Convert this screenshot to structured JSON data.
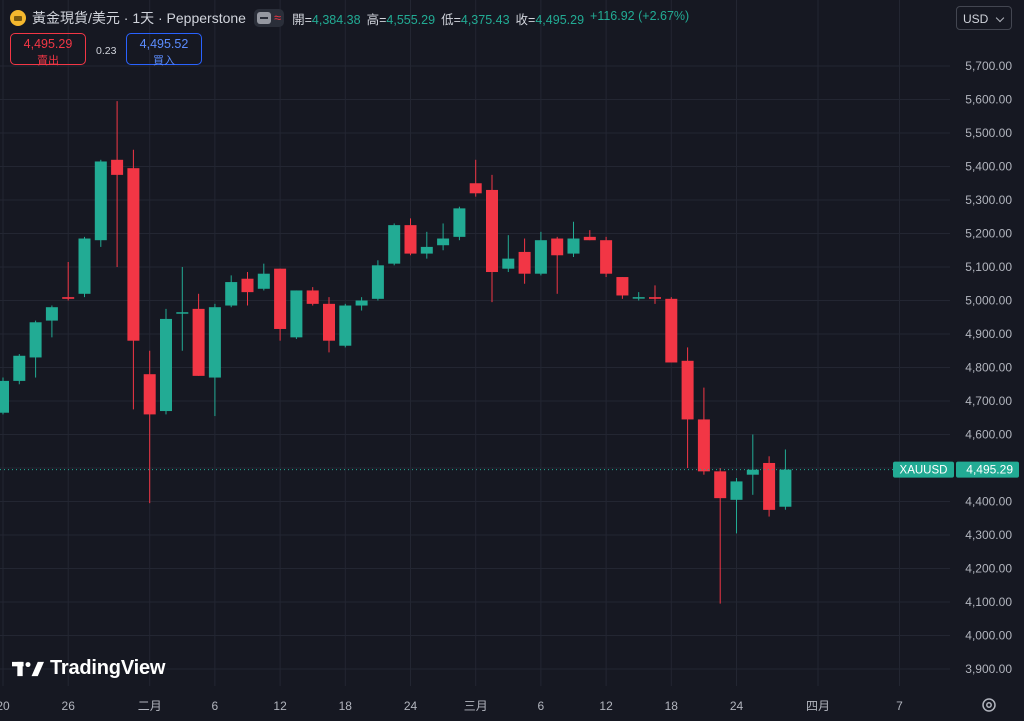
{
  "header": {
    "symbol": "黃金現貨/美元 · 1天 · Pepperstone",
    "open_label": "開=",
    "open": "4,384.38",
    "high_label": "高=",
    "high": "4,555.29",
    "low_label": "低=",
    "low": "4,375.43",
    "close_label": "收=",
    "close": "4,495.29",
    "change": "+116.92 (+2.67%)"
  },
  "trade": {
    "sell_price": "4,495.29",
    "sell_label": "賣出",
    "spread": "0.23",
    "buy_price": "4,495.52",
    "buy_label": "買入"
  },
  "currency": "USD",
  "branding": "TradingView",
  "colors": {
    "up": "#22ab94",
    "down": "#f23645",
    "background": "#161822",
    "grid": "#232632",
    "price_tag": "#22ab94"
  },
  "chart_data": {
    "type": "candlestick",
    "ylim": [
      3850,
      5800
    ],
    "y_ticks": [
      "3,900.00",
      "4,000.00",
      "4,100.00",
      "4,200.00",
      "4,300.00",
      "4,400.00",
      "4,500.00",
      "4,600.00",
      "4,700.00",
      "4,800.00",
      "4,900.00",
      "5,000.00",
      "5,100.00",
      "5,200.00",
      "5,300.00",
      "5,400.00",
      "5,500.00",
      "5,600.00",
      "5,700.00"
    ],
    "x_ticks": [
      {
        "label": "20",
        "slot": 0
      },
      {
        "label": "26",
        "slot": 4
      },
      {
        "label": "二月",
        "slot": 9
      },
      {
        "label": "6",
        "slot": 13
      },
      {
        "label": "12",
        "slot": 17
      },
      {
        "label": "18",
        "slot": 21
      },
      {
        "label": "24",
        "slot": 25
      },
      {
        "label": "三月",
        "slot": 29
      },
      {
        "label": "6",
        "slot": 33
      },
      {
        "label": "12",
        "slot": 37
      },
      {
        "label": "18",
        "slot": 41
      },
      {
        "label": "24",
        "slot": 45
      },
      {
        "label": "四月",
        "slot": 50
      },
      {
        "label": "7",
        "slot": 55
      }
    ],
    "last_price_label": "XAUUSD",
    "last_price": 4495.29,
    "last_price_text": "4,495.29",
    "candles": [
      {
        "o": 4665,
        "h": 4770,
        "l": 4660,
        "c": 4760
      },
      {
        "o": 4760,
        "h": 4840,
        "l": 4750,
        "c": 4835
      },
      {
        "o": 4830,
        "h": 4940,
        "l": 4770,
        "c": 4935
      },
      {
        "o": 4940,
        "h": 4985,
        "l": 4890,
        "c": 4980
      },
      {
        "o": 5010,
        "h": 5115,
        "l": 5000,
        "c": 5005
      },
      {
        "o": 5020,
        "h": 5190,
        "l": 5010,
        "c": 5185
      },
      {
        "o": 5180,
        "h": 5420,
        "l": 5160,
        "c": 5415
      },
      {
        "o": 5420,
        "h": 5595,
        "l": 5100,
        "c": 5375
      },
      {
        "o": 5395,
        "h": 5450,
        "l": 4675,
        "c": 4880
      },
      {
        "o": 4780,
        "h": 4850,
        "l": 4395,
        "c": 4660
      },
      {
        "o": 4670,
        "h": 4975,
        "l": 4660,
        "c": 4945
      },
      {
        "o": 4965,
        "h": 5100,
        "l": 4850,
        "c": 4965
      },
      {
        "o": 4975,
        "h": 5020,
        "l": 4775,
        "c": 4775
      },
      {
        "o": 4770,
        "h": 4990,
        "l": 4655,
        "c": 4980
      },
      {
        "o": 4985,
        "h": 5075,
        "l": 4980,
        "c": 5055
      },
      {
        "o": 5065,
        "h": 5085,
        "l": 4985,
        "c": 5025
      },
      {
        "o": 5035,
        "h": 5110,
        "l": 5030,
        "c": 5080
      },
      {
        "o": 5095,
        "h": 5095,
        "l": 4880,
        "c": 4915
      },
      {
        "o": 4890,
        "h": 5030,
        "l": 4885,
        "c": 5030
      },
      {
        "o": 5030,
        "h": 5040,
        "l": 4985,
        "c": 4990
      },
      {
        "o": 4990,
        "h": 5010,
        "l": 4845,
        "c": 4880
      },
      {
        "o": 4865,
        "h": 4990,
        "l": 4860,
        "c": 4985
      },
      {
        "o": 4985,
        "h": 5010,
        "l": 4970,
        "c": 5000
      },
      {
        "o": 5005,
        "h": 5120,
        "l": 5000,
        "c": 5105
      },
      {
        "o": 5110,
        "h": 5230,
        "l": 5105,
        "c": 5225
      },
      {
        "o": 5225,
        "h": 5245,
        "l": 5135,
        "c": 5140
      },
      {
        "o": 5140,
        "h": 5205,
        "l": 5125,
        "c": 5160
      },
      {
        "o": 5165,
        "h": 5230,
        "l": 5150,
        "c": 5185
      },
      {
        "o": 5190,
        "h": 5280,
        "l": 5180,
        "c": 5275
      },
      {
        "o": 5350,
        "h": 5420,
        "l": 5310,
        "c": 5320
      },
      {
        "o": 5330,
        "h": 5375,
        "l": 4995,
        "c": 5085
      },
      {
        "o": 5095,
        "h": 5195,
        "l": 5085,
        "c": 5125
      },
      {
        "o": 5145,
        "h": 5185,
        "l": 5050,
        "c": 5080
      },
      {
        "o": 5080,
        "h": 5205,
        "l": 5075,
        "c": 5180
      },
      {
        "o": 5185,
        "h": 5190,
        "l": 5020,
        "c": 5135
      },
      {
        "o": 5140,
        "h": 5235,
        "l": 5130,
        "c": 5185
      },
      {
        "o": 5190,
        "h": 5210,
        "l": 5180,
        "c": 5180
      },
      {
        "o": 5180,
        "h": 5190,
        "l": 5070,
        "c": 5080
      },
      {
        "o": 5070,
        "h": 5070,
        "l": 5005,
        "c": 5015
      },
      {
        "o": 5010,
        "h": 5025,
        "l": 5000,
        "c": 5010
      },
      {
        "o": 5010,
        "h": 5045,
        "l": 4990,
        "c": 5005
      },
      {
        "o": 5005,
        "h": 5010,
        "l": 4815,
        "c": 4815
      },
      {
        "o": 4820,
        "h": 4860,
        "l": 4500,
        "c": 4645
      },
      {
        "o": 4645,
        "h": 4740,
        "l": 4480,
        "c": 4490
      },
      {
        "o": 4490,
        "h": 4500,
        "l": 4095,
        "c": 4410
      },
      {
        "o": 4405,
        "h": 4470,
        "l": 4305,
        "c": 4460
      },
      {
        "o": 4480,
        "h": 4600,
        "l": 4420,
        "c": 4495
      },
      {
        "o": 4515,
        "h": 4535,
        "l": 4355,
        "c": 4375
      },
      {
        "o": 4384.38,
        "h": 4555.29,
        "l": 4375.43,
        "c": 4495.29
      }
    ]
  }
}
